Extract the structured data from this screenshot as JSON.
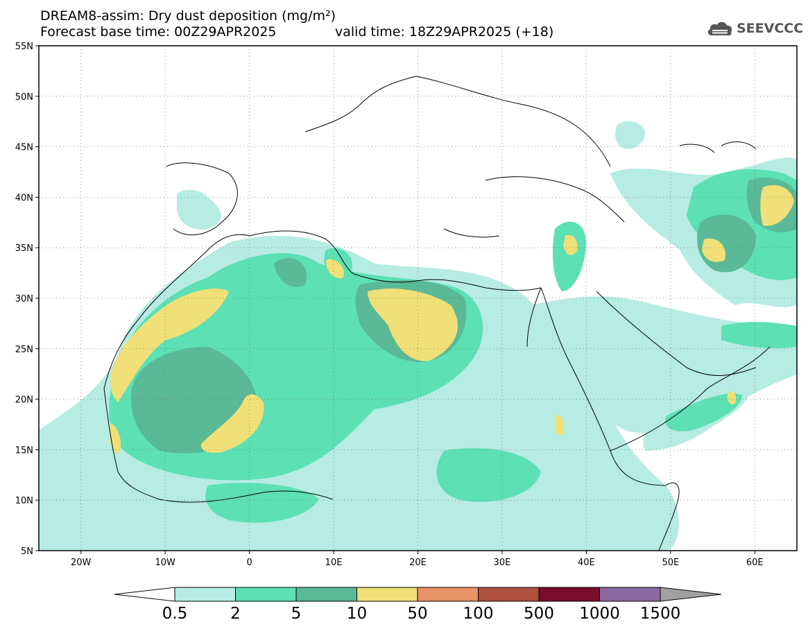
{
  "header": {
    "title_line1": "DREAM8-assim: Dry dust deposition (mg/m²)",
    "forecast_base": "Forecast base time: 00Z29APR2025",
    "valid_time": "valid time: 18Z29APR2025 (+18)",
    "logo_text": "SEEVCCC"
  },
  "map": {
    "lon_range": [
      -25,
      65
    ],
    "lat_range": [
      5,
      55
    ],
    "lat_ticks": [
      {
        "lat": 55,
        "label": "55N"
      },
      {
        "lat": 50,
        "label": "50N"
      },
      {
        "lat": 45,
        "label": "45N"
      },
      {
        "lat": 40,
        "label": "40N"
      },
      {
        "lat": 35,
        "label": "35N"
      },
      {
        "lat": 30,
        "label": "30N"
      },
      {
        "lat": 25,
        "label": "25N"
      },
      {
        "lat": 20,
        "label": "20N"
      },
      {
        "lat": 15,
        "label": "15N"
      },
      {
        "lat": 10,
        "label": "10N"
      },
      {
        "lat": 5,
        "label": "5N"
      }
    ],
    "lon_ticks": [
      {
        "lon": -20,
        "label": "20W"
      },
      {
        "lon": -10,
        "label": "10W"
      },
      {
        "lon": 0,
        "label": "0"
      },
      {
        "lon": 10,
        "label": "10E"
      },
      {
        "lon": 20,
        "label": "20E"
      },
      {
        "lon": 30,
        "label": "30E"
      },
      {
        "lon": 40,
        "label": "40E"
      },
      {
        "lon": 50,
        "label": "50E"
      },
      {
        "lon": 60,
        "label": "60E"
      }
    ],
    "grid": true
  },
  "colorbar": {
    "levels": [
      "0.5",
      "2",
      "5",
      "10",
      "50",
      "100",
      "500",
      "1000",
      "1500"
    ],
    "colors": [
      "#b6ece2",
      "#5ce0b4",
      "#5ab996",
      "#f0e077",
      "#e89466",
      "#b05040",
      "#7a0d2e",
      "#8a6a9e",
      "#a0a0a0"
    ],
    "under_color": "#ffffff"
  },
  "colors": {
    "dust_light": "#b6ece2",
    "dust_medium": "#5ce0b4",
    "dust_dark": "#5ab996",
    "dust_high": "#f0e077",
    "coastline": "#000000"
  }
}
